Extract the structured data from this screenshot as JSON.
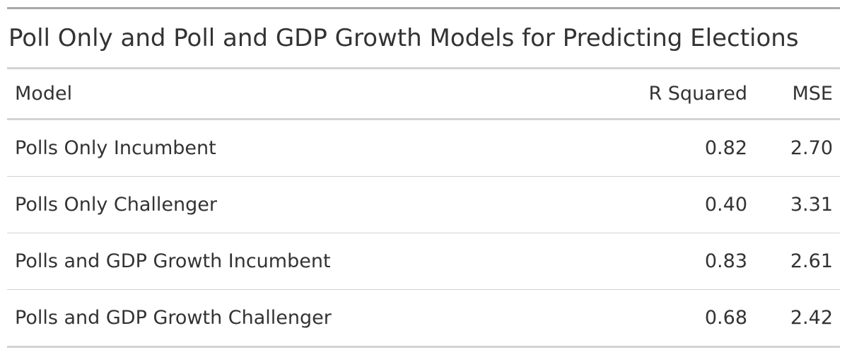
{
  "chart_data": {
    "type": "table",
    "title": "Poll Only and Poll and GDP Growth Models for Predicting Elections",
    "columns": [
      "Model",
      "R Squared",
      "MSE"
    ],
    "rows": [
      [
        "Polls Only Incumbent",
        "0.82",
        "2.70"
      ],
      [
        "Polls Only Challenger",
        "0.40",
        "3.31"
      ],
      [
        "Polls and GDP Growth Incumbent",
        "0.83",
        "2.61"
      ],
      [
        "Polls and GDP Growth Challenger",
        "0.68",
        "2.42"
      ]
    ]
  }
}
